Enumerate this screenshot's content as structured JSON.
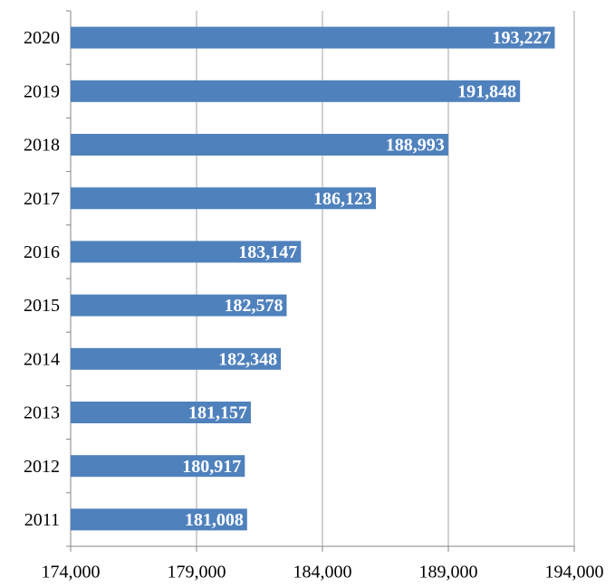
{
  "chart_data": {
    "type": "hbar",
    "categories": [
      "2020",
      "2019",
      "2018",
      "2017",
      "2016",
      "2015",
      "2014",
      "2013",
      "2012",
      "2011"
    ],
    "values": [
      193227,
      191848,
      188993,
      186123,
      183147,
      182578,
      182348,
      181157,
      180917,
      181008
    ],
    "value_labels": [
      "193,227",
      "191,848",
      "188,993",
      "186,123",
      "183,147",
      "182,578",
      "182,348",
      "181,157",
      "180,917",
      "181,008"
    ],
    "color": "#4f81bd",
    "xlim": [
      174000,
      194000
    ],
    "xticks": [
      {
        "value": 174000,
        "label": "174,000"
      },
      {
        "value": 179000,
        "label": "179,000"
      },
      {
        "value": 184000,
        "label": "184,000"
      },
      {
        "value": 189000,
        "label": "189,000"
      },
      {
        "value": 194000,
        "label": "194,000"
      }
    ],
    "grid": true
  }
}
